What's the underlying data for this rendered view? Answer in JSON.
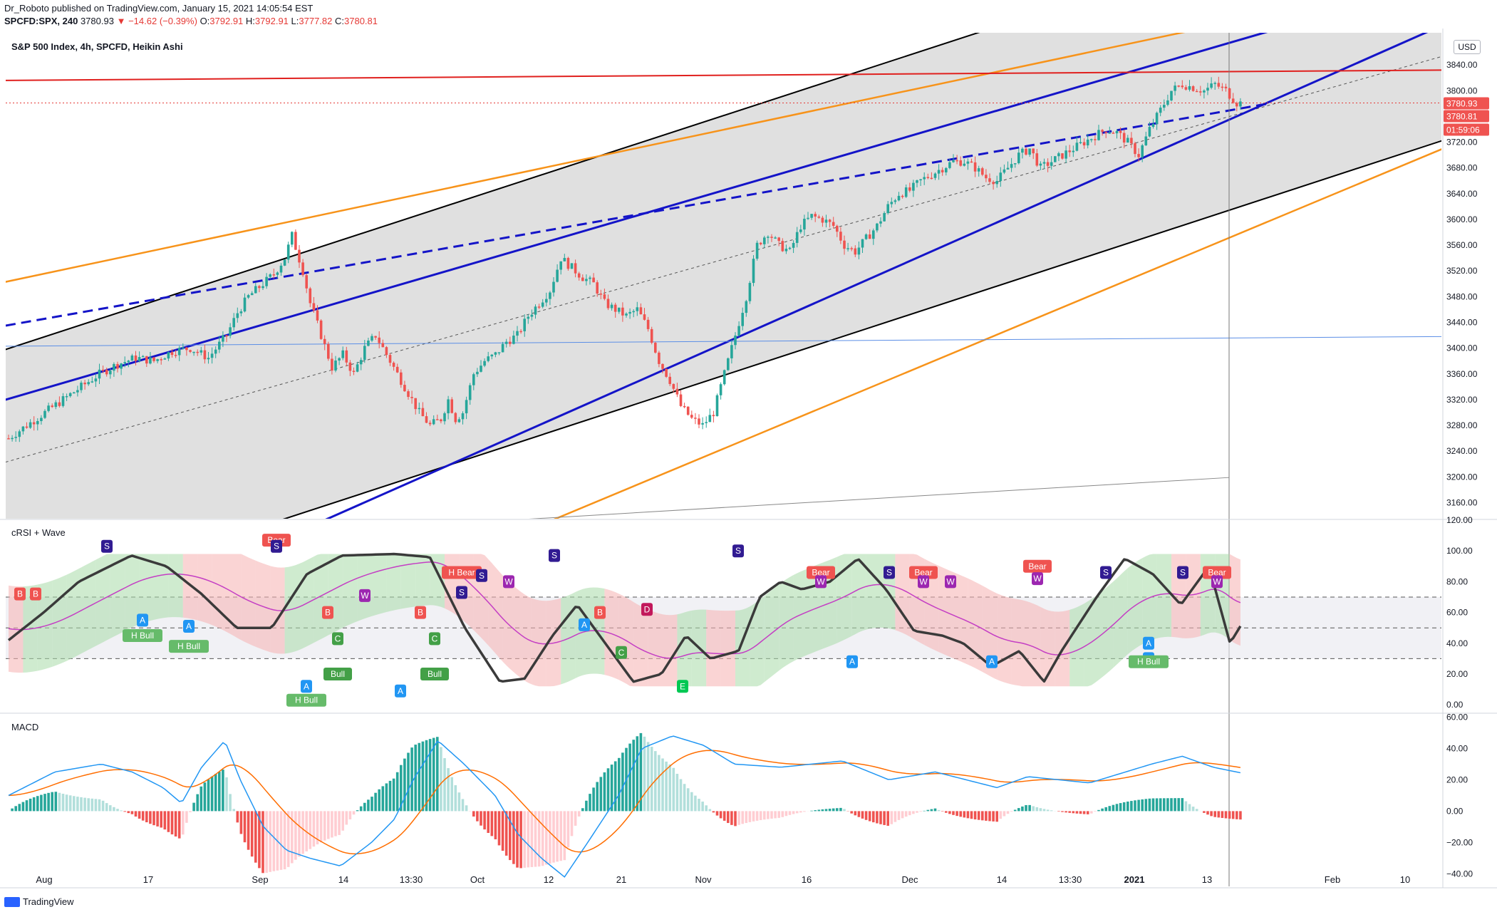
{
  "header": {
    "line1": "Dr_Roboto published on TradingView.com, January 15, 2021 14:05:54 EST",
    "symbol": "SPCFD:SPX, 240",
    "last": "3780.93",
    "change": "−14.62 (−0.39%)",
    "o_label": "O:",
    "o": "3792.91",
    "h_label": "H:",
    "h": "3792.91",
    "l_label": "L:",
    "l": "3777.82",
    "c_label": "C:",
    "c": "3780.81"
  },
  "pane_titles": {
    "main": "S&P 500 Index, 4h, SPCFD, Heikin Ashi",
    "rsi": "cRSI + Wave",
    "macd": "MACD"
  },
  "currency": "USD",
  "footer_brand": "TradingView",
  "colors": {
    "up": "#26a69a",
    "down": "#ef5350",
    "channel_blue": "#1414c8",
    "orange": "#f7931a",
    "resistance_red": "#e0201e",
    "thin_blue": "#5b8ee6",
    "macd_line": "#2196f3",
    "signal_line": "#ff6d00",
    "crsi_line": "#3a3a3a",
    "crsi_ma": "#c43ec4"
  },
  "chart_data": [
    {
      "type": "line",
      "name": "price",
      "title": "S&P 500 Index, 4h, SPCFD, Heikin Ashi",
      "x_ticks": [
        "Aug",
        "17",
        "Sep",
        "14",
        "13:30",
        "Oct",
        "12",
        "21",
        "Nov",
        "16",
        "Dec",
        "14",
        "13:30",
        "2021",
        "13",
        "Feb",
        "10"
      ],
      "y_ticks": [
        "3160.00",
        "3200.00",
        "3240.00",
        "3280.00",
        "3320.00",
        "3360.00",
        "3400.00",
        "3440.00",
        "3480.00",
        "3520.00",
        "3560.00",
        "3600.00",
        "3640.00",
        "3680.00",
        "3720.00",
        "3760.00",
        "3800.00",
        "3840.00"
      ],
      "ylim": [
        3135,
        3890
      ],
      "price_labels": [
        "3780.93",
        "3780.81",
        "01:59:06"
      ],
      "close_path": [
        [
          0,
          3260
        ],
        [
          10,
          3300
        ],
        [
          20,
          3340
        ],
        [
          25,
          3360
        ],
        [
          30,
          3375
        ],
        [
          35,
          3385
        ],
        [
          40,
          3380
        ],
        [
          45,
          3395
        ],
        [
          50,
          3400
        ],
        [
          55,
          3385
        ],
        [
          60,
          3420
        ],
        [
          63,
          3455
        ],
        [
          66,
          3480
        ],
        [
          70,
          3500
        ],
        [
          73,
          3515
        ],
        [
          76,
          3540
        ],
        [
          78,
          3575
        ],
        [
          81,
          3520
        ],
        [
          83,
          3470
        ],
        [
          86,
          3420
        ],
        [
          89,
          3370
        ],
        [
          92,
          3390
        ],
        [
          95,
          3360
        ],
        [
          98,
          3400
        ],
        [
          101,
          3420
        ],
        [
          104,
          3390
        ],
        [
          107,
          3360
        ],
        [
          110,
          3330
        ],
        [
          113,
          3300
        ],
        [
          116,
          3280
        ],
        [
          119,
          3290
        ],
        [
          121,
          3320
        ],
        [
          123,
          3290
        ],
        [
          125,
          3300
        ],
        [
          128,
          3360
        ],
        [
          131,
          3380
        ],
        [
          134,
          3390
        ],
        [
          137,
          3410
        ],
        [
          140,
          3420
        ],
        [
          143,
          3450
        ],
        [
          146,
          3470
        ],
        [
          149,
          3490
        ],
        [
          152,
          3540
        ],
        [
          155,
          3525
        ],
        [
          158,
          3510
        ],
        [
          161,
          3500
        ],
        [
          164,
          3470
        ],
        [
          167,
          3460
        ],
        [
          170,
          3450
        ],
        [
          173,
          3460
        ],
        [
          176,
          3430
        ],
        [
          179,
          3380
        ],
        [
          182,
          3350
        ],
        [
          185,
          3310
        ],
        [
          188,
          3290
        ],
        [
          191,
          3280
        ],
        [
          194,
          3300
        ],
        [
          197,
          3360
        ],
        [
          200,
          3420
        ],
        [
          203,
          3480
        ],
        [
          206,
          3560
        ],
        [
          209,
          3580
        ],
        [
          212,
          3560
        ],
        [
          215,
          3550
        ],
        [
          218,
          3590
        ],
        [
          221,
          3605
        ],
        [
          224,
          3600
        ],
        [
          227,
          3590
        ],
        [
          230,
          3560
        ],
        [
          233,
          3550
        ],
        [
          236,
          3570
        ],
        [
          239,
          3590
        ],
        [
          242,
          3620
        ],
        [
          245,
          3640
        ],
        [
          248,
          3645
        ],
        [
          251,
          3660
        ],
        [
          254,
          3670
        ],
        [
          257,
          3680
        ],
        [
          260,
          3690
        ],
        [
          263,
          3690
        ],
        [
          266,
          3680
        ],
        [
          269,
          3665
        ],
        [
          272,
          3660
        ],
        [
          275,
          3680
        ],
        [
          278,
          3700
        ],
        [
          281,
          3710
        ],
        [
          284,
          3680
        ],
        [
          287,
          3690
        ],
        [
          290,
          3700
        ],
        [
          293,
          3710
        ],
        [
          296,
          3720
        ],
        [
          299,
          3730
        ],
        [
          302,
          3740
        ],
        [
          305,
          3735
        ],
        [
          308,
          3720
        ],
        [
          311,
          3700
        ],
        [
          314,
          3740
        ],
        [
          317,
          3770
        ],
        [
          320,
          3800
        ],
        [
          323,
          3810
        ],
        [
          326,
          3805
        ],
        [
          329,
          3800
        ],
        [
          332,
          3810
        ],
        [
          335,
          3800
        ],
        [
          338,
          3781
        ]
      ]
    },
    {
      "type": "line",
      "name": "crsi",
      "title": "cRSI + Wave",
      "y_ticks": [
        "0.00",
        "20.00",
        "40.00",
        "60.00",
        "80.00",
        "100.00",
        "120.00"
      ],
      "ylim": [
        -5,
        120
      ],
      "levels": [
        30,
        50,
        70
      ],
      "signal_labels": [
        "B",
        "B",
        "S",
        "A",
        "H Bull",
        "A",
        "H Bull",
        "Bear",
        "S",
        "A",
        "H Bull",
        "B",
        "C",
        "Bull",
        "W",
        "A",
        "B",
        "C",
        "Bull",
        "H Bear",
        "S",
        "S",
        "W",
        "S",
        "A",
        "B",
        "C",
        "D",
        "E",
        "S",
        "Bear",
        "W",
        "A",
        "S",
        "Bear",
        "W",
        "W",
        "A",
        "Bear",
        "W",
        "S",
        "A",
        "S",
        "Bear",
        "W",
        "A",
        "H Bull"
      ]
    },
    {
      "type": "bar",
      "name": "macd",
      "title": "MACD",
      "y_ticks": [
        "−40.00",
        "−20.00",
        "0.00",
        "20.00",
        "40.00",
        "60.00"
      ],
      "ylim": [
        -48,
        62
      ]
    }
  ],
  "x_axis_ticks": [
    "Aug",
    "17",
    "Sep",
    "14",
    "13:30",
    "Oct",
    "12",
    "21",
    "Nov",
    "16",
    "Dec",
    "14",
    "13:30",
    "2021",
    "13",
    "Feb",
    "10"
  ]
}
